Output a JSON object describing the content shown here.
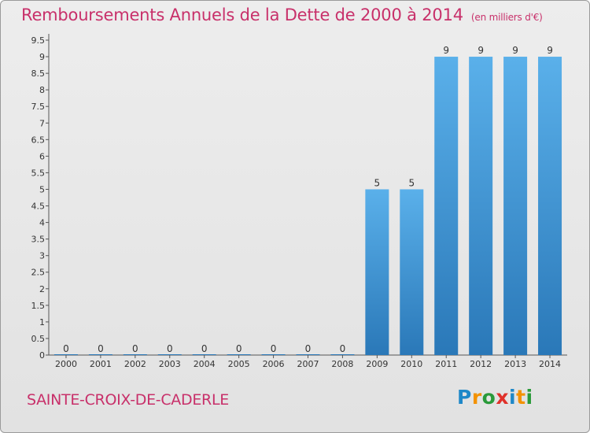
{
  "header": {
    "title": "Remboursements Annuels de la Dette de 2000 à 2014",
    "unit": "(en milliers d'€)"
  },
  "footer": {
    "commune": "SAINTE-CROIX-DE-CADERLE",
    "logo": {
      "text": "Proxiti",
      "letters": [
        "P",
        "r",
        "o",
        "x",
        "i",
        "t",
        "i"
      ],
      "colors": [
        "#1e88c8",
        "#f39200",
        "#2a9a3a",
        "#e0312a",
        "#1e88c8",
        "#f39200",
        "#2a9a3a"
      ]
    }
  },
  "chart_data": {
    "type": "bar",
    "categories": [
      "2000",
      "2001",
      "2002",
      "2003",
      "2004",
      "2005",
      "2006",
      "2007",
      "2008",
      "2009",
      "2010",
      "2011",
      "2012",
      "2013",
      "2014"
    ],
    "values": [
      0,
      0,
      0,
      0,
      0,
      0,
      0,
      0,
      0,
      5,
      5,
      9,
      9,
      9,
      9
    ],
    "data_labels": [
      "0",
      "0",
      "0",
      "0",
      "0",
      "0",
      "0",
      "0",
      "0",
      "5",
      "5",
      "9",
      "9",
      "9",
      "9"
    ],
    "y_ticks": [
      "0",
      "0.5",
      "1",
      "1.5",
      "2",
      "2.5",
      "3",
      "3.5",
      "4",
      "4.5",
      "5",
      "5.5",
      "6",
      "6.5",
      "7",
      "7.5",
      "8",
      "8.5",
      "9",
      "9.5"
    ],
    "ylim": [
      0,
      9.5
    ],
    "grid": false,
    "bar_color": "#3d96d8"
  }
}
